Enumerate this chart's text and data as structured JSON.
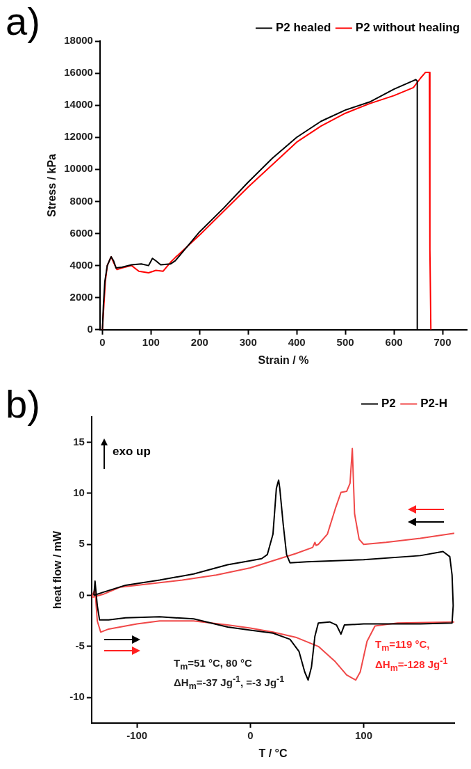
{
  "chart_data": [
    {
      "type": "line",
      "xlabel": "Strain / %",
      "ylabel": "Stress / kPa",
      "annotations": [
        "a)"
      ],
      "xlim": [
        -5,
        750
      ],
      "xticks": [
        0,
        100,
        200,
        300,
        400,
        500,
        600,
        700
      ],
      "ylim": [
        0,
        18000
      ],
      "yticks": [
        0,
        2000,
        4000,
        6000,
        8000,
        10000,
        12000,
        14000,
        16000,
        18000
      ],
      "grid": false,
      "legend": "top right",
      "marker": "none",
      "line_style": "solid",
      "series": [
        {
          "name": "P2 healed",
          "color": "#000000",
          "x": [
            0,
            2,
            5,
            10,
            18,
            23,
            28,
            40,
            60,
            80,
            95,
            103,
            110,
            120,
            140,
            150,
            200,
            250,
            300,
            350,
            400,
            450,
            500,
            550,
            600,
            645,
            648,
            648
          ],
          "values": [
            0,
            1500,
            3000,
            4000,
            4550,
            4300,
            3850,
            3900,
            4050,
            4100,
            4000,
            4450,
            4300,
            4050,
            4100,
            4300,
            6100,
            7600,
            9200,
            10700,
            12000,
            13000,
            13700,
            14200,
            15000,
            15600,
            15500,
            0
          ]
        },
        {
          "name": "P2 without healing",
          "color": "#ff0000",
          "x": [
            0,
            3,
            6,
            10,
            18,
            23,
            30,
            40,
            60,
            75,
            95,
            110,
            125,
            140,
            150,
            200,
            250,
            300,
            350,
            400,
            450,
            500,
            550,
            600,
            640,
            655,
            665,
            673,
            674,
            676
          ],
          "values": [
            0,
            1500,
            3000,
            4000,
            4550,
            4200,
            3750,
            3850,
            4000,
            3650,
            3550,
            3700,
            3650,
            4200,
            4500,
            5900,
            7400,
            8900,
            10300,
            11700,
            12700,
            13500,
            14100,
            14600,
            15100,
            15700,
            16050,
            16050,
            5000,
            0
          ]
        }
      ]
    },
    {
      "type": "line",
      "xlabel": "T / °C",
      "ylabel": "heat flow / mW",
      "annotations": [
        "b)",
        "exo up",
        "T$_{m}$=51 °C, 80 °C",
        "ΔH$_{m}$=-37 Jg$^{-1}$, =-3 Jg$^{-1}$",
        "T$_{m}$=119 °C,",
        "ΔH$_{m}$=-128 Jg$^{-1}$"
      ],
      "xlim": [
        -140,
        180
      ],
      "xticks": [
        -100,
        0,
        100
      ],
      "ylim": [
        -12.5,
        17.5
      ],
      "yticks": [
        -10,
        -5,
        0,
        5,
        10,
        15
      ],
      "grid": false,
      "legend": "top right",
      "marker": "none",
      "line_style": "solid",
      "series": [
        {
          "name": "P2",
          "color": "#000000",
          "x": [
            -138,
            -137,
            -135,
            -133,
            -125,
            -110,
            -80,
            -50,
            -20,
            0,
            20,
            35,
            43,
            48,
            51,
            54,
            57,
            60,
            70,
            76,
            80,
            83,
            100,
            150,
            178,
            179,
            null,
            179,
            178,
            176,
            170,
            150,
            100,
            50,
            35,
            32,
            29,
            26,
            25,
            23,
            20,
            15,
            10,
            0,
            -20,
            -50,
            -80,
            -110,
            -130,
            -138
          ],
          "values": [
            0,
            1.4,
            -1,
            -2.4,
            -2.4,
            -2.2,
            -2.1,
            -2.3,
            -3.1,
            -3.4,
            -3.7,
            -4.3,
            -5.5,
            -7.5,
            -8.3,
            -7,
            -4,
            -2.7,
            -2.6,
            -2.9,
            -3.8,
            -2.9,
            -2.8,
            -2.8,
            -2.7,
            -1,
            null,
            -1,
            2,
            3.8,
            4.3,
            3.9,
            3.5,
            3.3,
            3.2,
            4,
            7,
            10.5,
            11.3,
            10.5,
            6,
            4,
            3.6,
            3.4,
            3,
            2.1,
            1.5,
            1,
            0.3,
            0
          ]
        },
        {
          "name": "P2-H",
          "color": "#f04848",
          "x": [
            -140,
            -137,
            -135,
            -132,
            -125,
            -100,
            -80,
            -50,
            -20,
            0,
            20,
            40,
            60,
            75,
            85,
            93,
            97,
            103,
            110,
            130,
            180,
            null,
            180,
            150,
            120,
            100,
            96,
            92,
            90,
            88,
            85,
            80,
            75,
            68,
            60,
            58,
            57,
            55,
            40,
            20,
            0,
            -30,
            -60,
            -100,
            -115,
            -130,
            -140
          ],
          "values": [
            -0.2,
            0.6,
            -2.5,
            -3.6,
            -3.3,
            -2.8,
            -2.5,
            -2.5,
            -2.9,
            -3.2,
            -3.6,
            -4.1,
            -5,
            -6.5,
            -7.8,
            -8.3,
            -7.5,
            -4.5,
            -3,
            -2.7,
            -2.6,
            null,
            6.1,
            5.6,
            5.2,
            5,
            5.5,
            8,
            14.4,
            11,
            10.2,
            10.1,
            8.5,
            6,
            5,
            4.9,
            5.2,
            4.7,
            4.1,
            3.4,
            2.7,
            2,
            1.5,
            1,
            0.8,
            0.1,
            -0.2
          ]
        }
      ]
    }
  ]
}
